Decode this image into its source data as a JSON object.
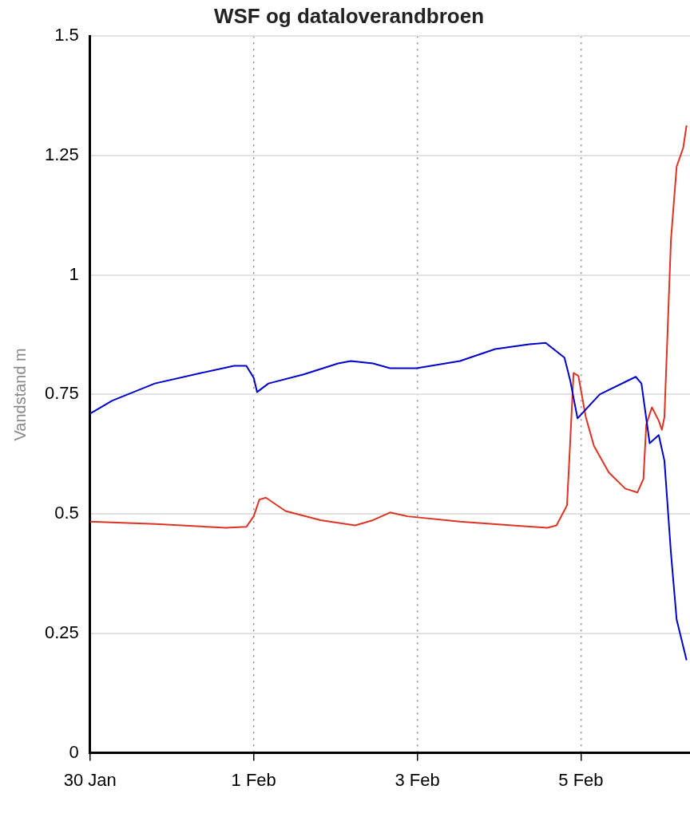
{
  "chart_data": {
    "type": "line",
    "title": "WSF og dataloverandbroen",
    "ylabel": "Vandstand m",
    "xlim": [
      "--01-30T00:00",
      "--02-06T08:00"
    ],
    "xticks": [
      {
        "value": "--01-30",
        "label": "30 Jan"
      },
      {
        "value": "--02-01",
        "label": "1 Feb"
      },
      {
        "value": "--02-03",
        "label": "3 Feb"
      },
      {
        "value": "--02-05",
        "label": "5 Feb"
      }
    ],
    "ylim": [
      0,
      1.5
    ],
    "yticks": [
      0,
      0.25,
      0.5,
      0.75,
      1,
      1.25,
      1.5
    ],
    "grid": true,
    "legend": false,
    "marker": "none",
    "line_style": "solid",
    "series": [
      {
        "color": "#0000cc",
        "x": [
          "--01-30T00:00",
          "--01-30T06:30",
          "--01-30T19:00",
          "--01-31T08:00",
          "--01-31T18:15",
          "--01-31T21:50",
          "--02-01T00:00",
          "--02-01T01:00",
          "--02-01T04:20",
          "--02-01T14:40",
          "--02-02T00:45",
          "--02-02T04:30",
          "--02-02T11:00",
          "--02-02T16:00",
          "--02-02T23:45",
          "--02-03T12:30",
          "--02-03T22:50",
          "--02-04T08:50",
          "--02-04T13:40",
          "--02-04T19:10",
          "--02-04T20:50",
          "--02-04T23:00",
          "--02-05T05:30",
          "--02-05T16:05",
          "--02-05T17:45",
          "--02-05T20:10",
          "--02-05T22:50",
          "--02-06T00:30",
          "--02-06T02:25",
          "--02-06T04:05",
          "--02-06T07:00"
        ],
        "values": [
          0.71,
          0.737,
          0.773,
          0.794,
          0.81,
          0.81,
          0.785,
          0.755,
          0.773,
          0.792,
          0.815,
          0.82,
          0.815,
          0.805,
          0.805,
          0.82,
          0.845,
          0.855,
          0.858,
          0.827,
          0.78,
          0.7,
          0.75,
          0.787,
          0.773,
          0.648,
          0.665,
          0.611,
          0.418,
          0.279,
          0.194
        ]
      },
      {
        "color": "#dd3322",
        "x": [
          "--01-30T00:00",
          "--01-30T19:10",
          "--01-31T15:50",
          "--01-31T21:50",
          "--02-01T00:00",
          "--02-01T01:40",
          "--02-01T03:35",
          "--02-01T09:20",
          "--02-01T19:40",
          "--02-02T05:45",
          "--02-02T11:00",
          "--02-02T16:00",
          "--02-02T21:05",
          "--02-03T12:30",
          "--02-04T03:50",
          "--02-04T14:10",
          "--02-04T16:50",
          "--02-04T19:55",
          "--02-04T20:50",
          "--02-04T21:50",
          "--02-04T23:15",
          "--02-05T01:25",
          "--02-05T03:50",
          "--02-05T08:10",
          "--02-05T13:00",
          "--02-05T16:35",
          "--02-05T18:20",
          "--02-05T19:10",
          "--02-05T20:50",
          "--02-05T22:50",
          "--02-05T23:45",
          "--02-06T00:30",
          "--02-06T02:25",
          "--02-06T04:05",
          "--02-06T06:00",
          "--02-06T07:00"
        ],
        "values": [
          0.484,
          0.479,
          0.471,
          0.473,
          0.495,
          0.53,
          0.534,
          0.506,
          0.487,
          0.476,
          0.487,
          0.503,
          0.495,
          0.484,
          0.476,
          0.471,
          0.476,
          0.518,
          0.648,
          0.795,
          0.789,
          0.703,
          0.642,
          0.587,
          0.553,
          0.545,
          0.573,
          0.687,
          0.723,
          0.695,
          0.676,
          0.703,
          1.074,
          1.227,
          1.266,
          1.313
        ]
      }
    ]
  }
}
